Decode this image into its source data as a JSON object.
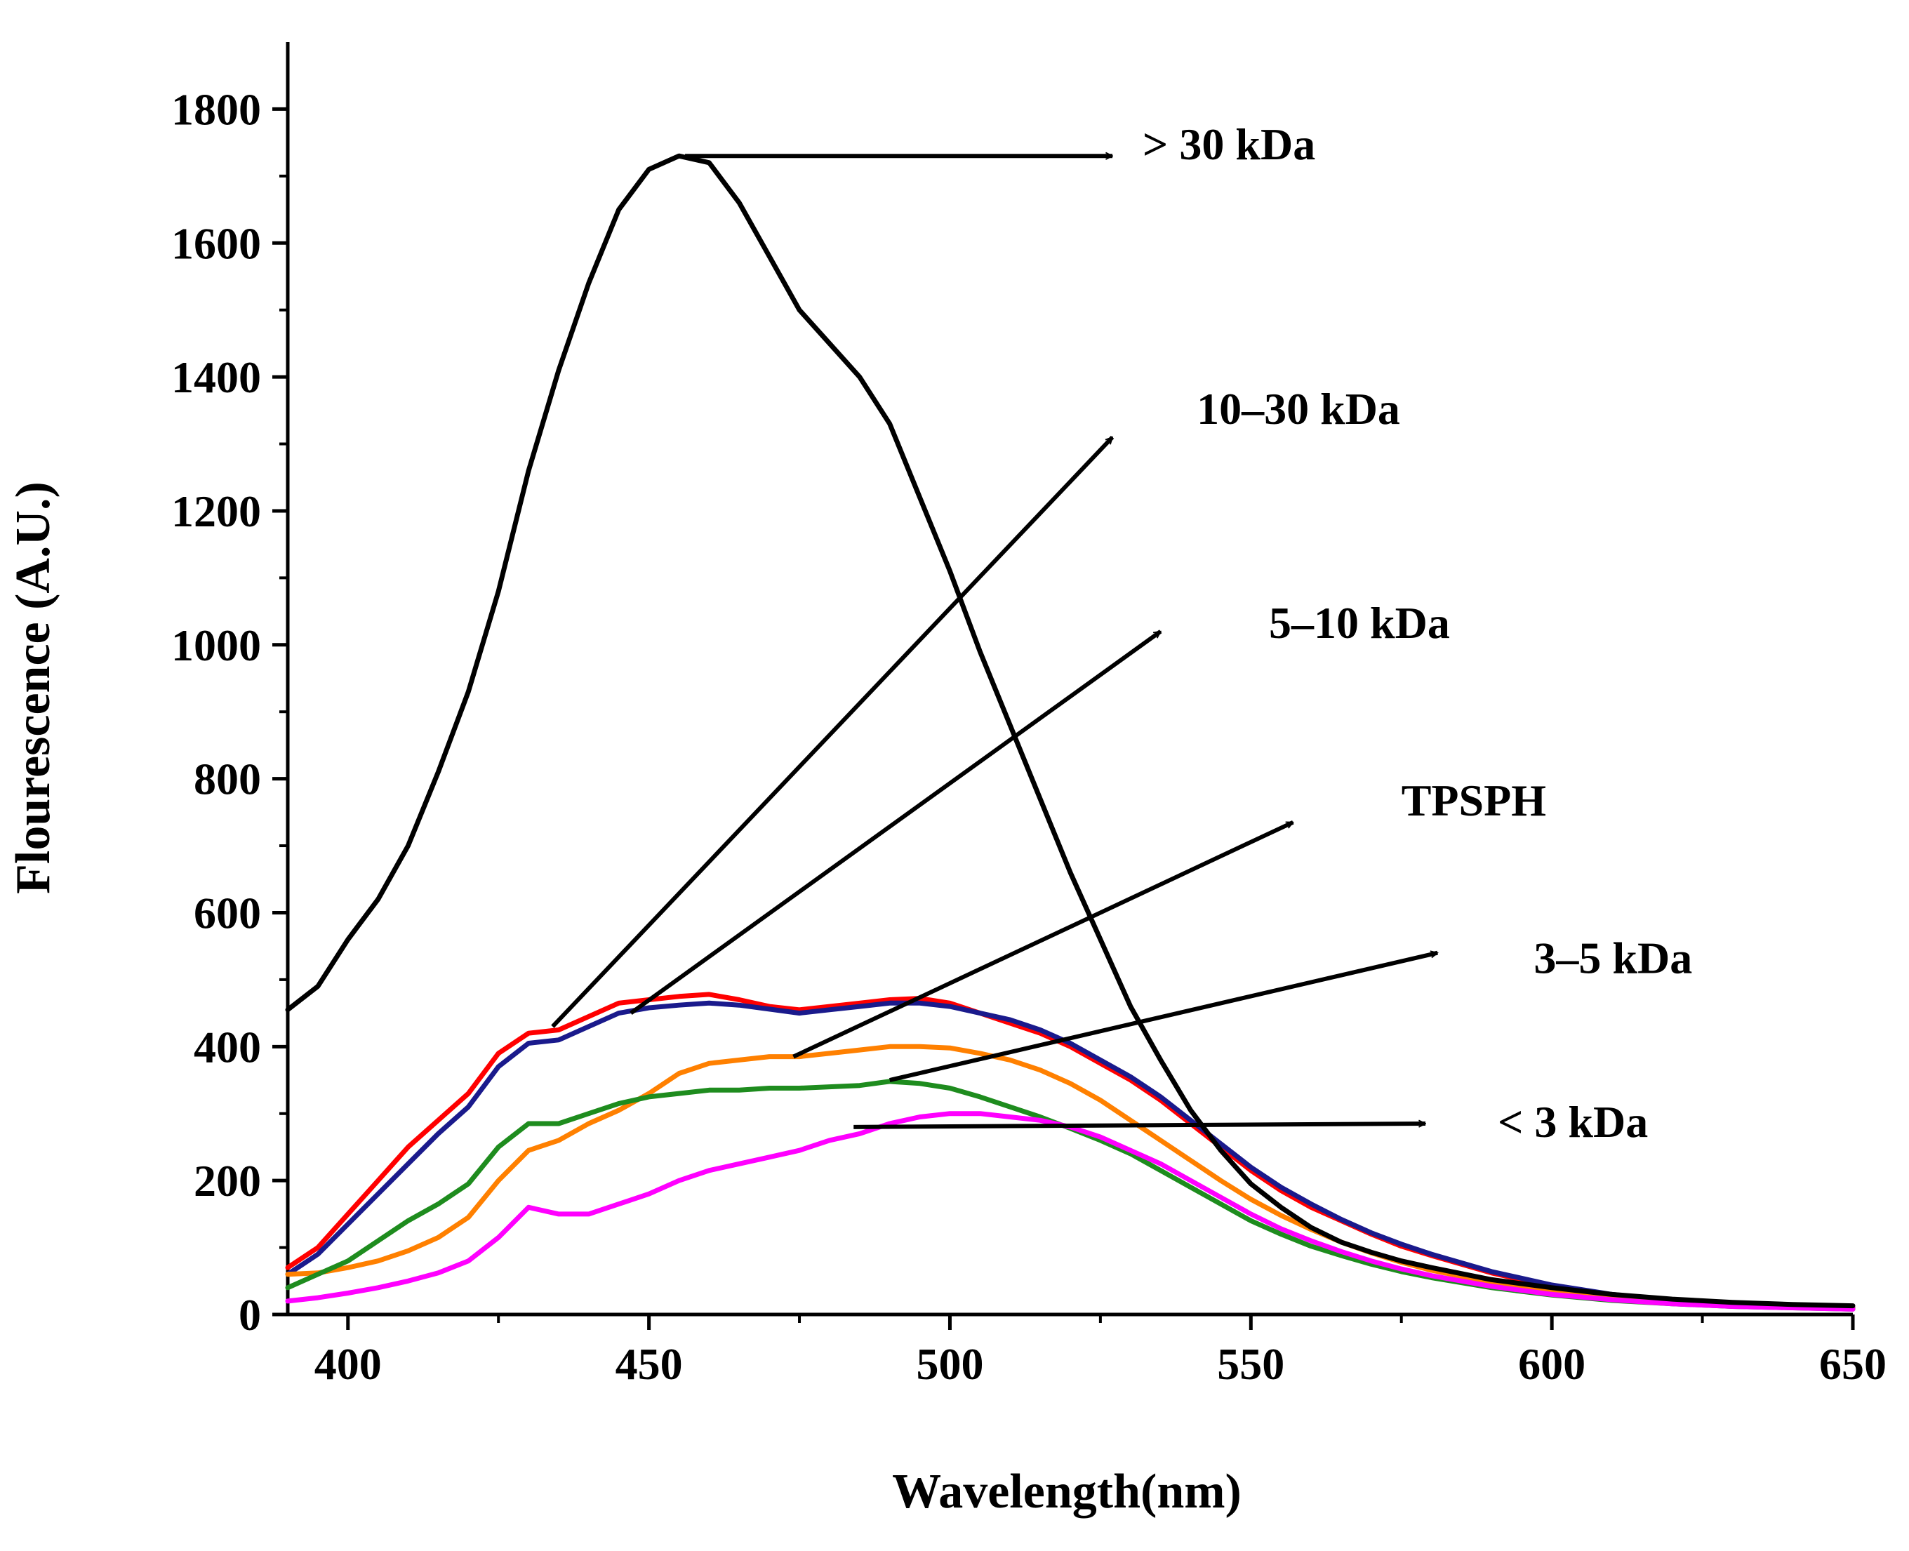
{
  "chart_data": {
    "type": "line",
    "title": "",
    "xlabel": "Wavelength(nm)",
    "ylabel": "Flourescence (A.U.)",
    "xlim": [
      390,
      650
    ],
    "ylim": [
      0,
      1900
    ],
    "x_ticks": [
      400,
      450,
      500,
      550,
      600,
      650
    ],
    "y_ticks": [
      0,
      200,
      400,
      600,
      800,
      1000,
      1200,
      1400,
      1600,
      1800
    ],
    "grid": false,
    "legend": "none",
    "series": [
      {
        "name": "> 30 kDa",
        "color": "#000000",
        "x": [
          390,
          395,
          400,
          405,
          410,
          415,
          420,
          425,
          430,
          435,
          440,
          445,
          450,
          455,
          460,
          465,
          470,
          475,
          480,
          485,
          490,
          495,
          500,
          505,
          510,
          515,
          520,
          525,
          530,
          535,
          540,
          545,
          550,
          555,
          560,
          565,
          570,
          575,
          580,
          590,
          600,
          610,
          620,
          630,
          640,
          650
        ],
        "y": [
          455,
          490,
          560,
          620,
          700,
          810,
          930,
          1080,
          1260,
          1410,
          1540,
          1650,
          1710,
          1730,
          1720,
          1660,
          1580,
          1500,
          1450,
          1400,
          1330,
          1220,
          1110,
          990,
          880,
          770,
          660,
          560,
          460,
          380,
          305,
          245,
          195,
          160,
          130,
          108,
          93,
          80,
          70,
          52,
          40,
          30,
          23,
          18,
          15,
          13
        ]
      },
      {
        "name": "10–30 kDa",
        "color": "#ff0000",
        "x": [
          390,
          395,
          400,
          405,
          410,
          415,
          420,
          425,
          430,
          435,
          440,
          445,
          450,
          455,
          460,
          465,
          470,
          475,
          480,
          485,
          490,
          495,
          500,
          505,
          510,
          515,
          520,
          525,
          530,
          535,
          540,
          545,
          550,
          555,
          560,
          565,
          570,
          575,
          580,
          590,
          600,
          610,
          620,
          630,
          640,
          650
        ],
        "y": [
          70,
          100,
          150,
          200,
          250,
          290,
          330,
          390,
          420,
          425,
          445,
          465,
          470,
          475,
          478,
          470,
          460,
          455,
          460,
          465,
          470,
          472,
          465,
          450,
          435,
          420,
          400,
          375,
          350,
          320,
          285,
          250,
          215,
          185,
          160,
          140,
          120,
          102,
          88,
          62,
          42,
          28,
          20,
          15,
          12,
          10
        ]
      },
      {
        "name": "5–10 kDa",
        "color": "#1a1a8c",
        "x": [
          390,
          395,
          400,
          405,
          410,
          415,
          420,
          425,
          430,
          435,
          440,
          445,
          450,
          455,
          460,
          465,
          470,
          475,
          480,
          485,
          490,
          495,
          500,
          505,
          510,
          515,
          520,
          525,
          530,
          535,
          540,
          545,
          550,
          555,
          560,
          565,
          570,
          575,
          580,
          590,
          600,
          610,
          620,
          630,
          640,
          650
        ],
        "y": [
          60,
          90,
          135,
          180,
          225,
          270,
          310,
          370,
          405,
          410,
          430,
          450,
          458,
          462,
          465,
          462,
          456,
          450,
          455,
          460,
          465,
          465,
          460,
          450,
          440,
          425,
          405,
          380,
          355,
          325,
          290,
          255,
          220,
          190,
          165,
          142,
          122,
          105,
          90,
          64,
          44,
          30,
          21,
          16,
          12,
          10
        ]
      },
      {
        "name": "TPSPH",
        "color": "#ff8000",
        "x": [
          390,
          395,
          400,
          405,
          410,
          415,
          420,
          425,
          430,
          435,
          440,
          445,
          450,
          455,
          460,
          465,
          470,
          475,
          480,
          485,
          490,
          495,
          500,
          505,
          510,
          515,
          520,
          525,
          530,
          535,
          540,
          545,
          550,
          555,
          560,
          565,
          570,
          575,
          580,
          590,
          600,
          610,
          620,
          630,
          640,
          650
        ],
        "y": [
          60,
          62,
          70,
          80,
          95,
          115,
          145,
          200,
          245,
          260,
          285,
          305,
          330,
          360,
          375,
          380,
          385,
          385,
          390,
          395,
          400,
          400,
          398,
          390,
          380,
          365,
          345,
          320,
          290,
          260,
          230,
          200,
          172,
          148,
          127,
          108,
          92,
          78,
          66,
          48,
          34,
          24,
          18,
          14,
          11,
          9
        ]
      },
      {
        "name": "3–5 kDa",
        "color": "#1e8c1e",
        "x": [
          390,
          395,
          400,
          405,
          410,
          415,
          420,
          425,
          430,
          435,
          440,
          445,
          450,
          455,
          460,
          465,
          470,
          475,
          480,
          485,
          490,
          495,
          500,
          505,
          510,
          515,
          520,
          525,
          530,
          535,
          540,
          545,
          550,
          555,
          560,
          565,
          570,
          575,
          580,
          590,
          600,
          610,
          620,
          630,
          640,
          650
        ],
        "y": [
          40,
          60,
          80,
          110,
          140,
          165,
          195,
          250,
          285,
          285,
          300,
          315,
          325,
          330,
          335,
          335,
          338,
          338,
          340,
          342,
          348,
          345,
          338,
          325,
          310,
          295,
          278,
          260,
          240,
          215,
          190,
          165,
          140,
          120,
          102,
          88,
          75,
          64,
          55,
          40,
          29,
          21,
          16,
          12,
          10,
          8
        ]
      },
      {
        "name": "< 3 kDa",
        "color": "#ff00ff",
        "x": [
          390,
          395,
          400,
          405,
          410,
          415,
          420,
          425,
          430,
          435,
          440,
          445,
          450,
          455,
          460,
          465,
          470,
          475,
          480,
          485,
          490,
          495,
          500,
          505,
          510,
          515,
          520,
          525,
          530,
          535,
          540,
          545,
          550,
          555,
          560,
          565,
          570,
          575,
          580,
          590,
          600,
          610,
          620,
          630,
          640,
          650
        ],
        "y": [
          20,
          25,
          32,
          40,
          50,
          62,
          80,
          115,
          160,
          150,
          150,
          165,
          180,
          200,
          215,
          225,
          235,
          245,
          260,
          270,
          285,
          295,
          300,
          300,
          295,
          290,
          280,
          265,
          245,
          225,
          200,
          175,
          150,
          128,
          110,
          94,
          80,
          68,
          58,
          42,
          30,
          22,
          16,
          12,
          10,
          8
        ]
      }
    ],
    "annotations": [
      {
        "text": "> 30 kDa",
        "from": [
          456,
          1730
        ],
        "to": [
          527,
          1730
        ],
        "label_at": [
          532,
          1725
        ]
      },
      {
        "text": "10–30 kDa",
        "from": [
          434,
          430
        ],
        "to": [
          527,
          1310
        ],
        "label_at": [
          541,
          1330
        ]
      },
      {
        "text": "5–10 kDa",
        "from": [
          447,
          450
        ],
        "to": [
          535,
          1020
        ],
        "label_at": [
          553,
          1010
        ]
      },
      {
        "text": "TPSPH",
        "from": [
          474,
          385
        ],
        "to": [
          557,
          735
        ],
        "label_at": [
          575,
          745
        ]
      },
      {
        "text": "3–5 kDa",
        "from": [
          490,
          350
        ],
        "to": [
          581,
          540
        ],
        "label_at": [
          597,
          510
        ]
      },
      {
        "text": "< 3 kDa",
        "from": [
          484,
          280
        ],
        "to": [
          579,
          285
        ],
        "label_at": [
          591,
          265
        ]
      }
    ]
  }
}
